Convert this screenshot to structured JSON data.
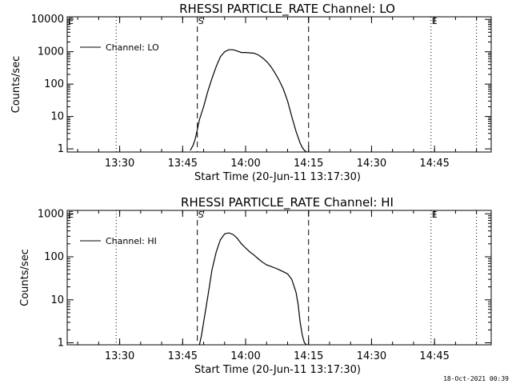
{
  "footer_timestamp": "18-Oct-2021 00:39",
  "chart_data": [
    {
      "type": "line",
      "title": "RHESSI PARTICLE_RATE Channel: LO",
      "xlabel": "Start Time (20-Jun-11 13:17:30)",
      "ylabel": "Counts/sec",
      "yscale": "log",
      "ylim": [
        0.8,
        12000
      ],
      "xlim": [
        "13:17:30",
        "14:58:30"
      ],
      "xticks": [
        "13:30",
        "13:45",
        "14:00",
        "14:15",
        "14:30",
        "14:45"
      ],
      "yticks": [
        1,
        10,
        100,
        1000,
        10000
      ],
      "ytick_labels": [
        "1",
        "10",
        "100",
        "1000",
        "10000"
      ],
      "legend": {
        "entries": [
          "Channel: LO"
        ],
        "placement": "top-left"
      },
      "markers": [
        {
          "time": "13:17:30",
          "style": "dotted",
          "label": "E"
        },
        {
          "time": "13:29:10",
          "style": "dotted",
          "label": ""
        },
        {
          "time": "13:48:30",
          "style": "dashed",
          "label": "S"
        },
        {
          "time": "14:15:00",
          "style": "dashed",
          "label": ""
        },
        {
          "time": "14:44:10",
          "style": "dotted",
          "label": "E"
        },
        {
          "time": "14:55:00",
          "style": "dotted",
          "label": ""
        }
      ],
      "series": [
        {
          "name": "Channel: LO",
          "x": [
            "13:46:50",
            "13:47:30",
            "13:48:00",
            "13:48:30",
            "13:49:00",
            "13:50:00",
            "13:51:00",
            "13:52:00",
            "13:53:00",
            "13:54:00",
            "13:55:00",
            "13:56:00",
            "13:57:00",
            "13:58:00",
            "13:59:00",
            "14:00:00",
            "14:01:00",
            "14:02:00",
            "14:03:00",
            "14:04:00",
            "14:05:00",
            "14:06:00",
            "14:07:00",
            "14:08:00",
            "14:09:00",
            "14:10:00",
            "14:11:00",
            "14:12:00",
            "14:13:00",
            "14:13:30",
            "14:14:00",
            "14:14:30"
          ],
          "y": [
            0.9,
            1.3,
            2,
            4,
            8,
            20,
            60,
            150,
            350,
            700,
            1000,
            1150,
            1150,
            1050,
            950,
            950,
            920,
            900,
            800,
            650,
            500,
            350,
            220,
            130,
            70,
            30,
            10,
            3.5,
            1.5,
            1.1,
            0.9,
            0.8
          ]
        }
      ]
    },
    {
      "type": "line",
      "title": "RHESSI PARTICLE_RATE Channel: HI",
      "xlabel": "Start Time (20-Jun-11 13:17:30)",
      "ylabel": "Counts/sec",
      "yscale": "log",
      "ylim": [
        0.9,
        1200
      ],
      "xlim": [
        "13:17:30",
        "14:58:30"
      ],
      "xticks": [
        "13:30",
        "13:45",
        "14:00",
        "14:15",
        "14:30",
        "14:45"
      ],
      "yticks": [
        1,
        10,
        100,
        1000
      ],
      "ytick_labels": [
        "1",
        "10",
        "100",
        "1000"
      ],
      "legend": {
        "entries": [
          "Channel: HI"
        ],
        "placement": "top-left"
      },
      "markers": [
        {
          "time": "13:17:30",
          "style": "dotted",
          "label": "E"
        },
        {
          "time": "13:29:10",
          "style": "dotted",
          "label": ""
        },
        {
          "time": "13:48:30",
          "style": "dashed",
          "label": "S"
        },
        {
          "time": "14:15:00",
          "style": "dashed",
          "label": ""
        },
        {
          "time": "14:44:10",
          "style": "dotted",
          "label": "E"
        },
        {
          "time": "14:55:00",
          "style": "dotted",
          "label": ""
        }
      ],
      "series": [
        {
          "name": "Channel: HI",
          "x": [
            "13:49:00",
            "13:49:30",
            "13:50:00",
            "13:51:00",
            "13:52:00",
            "13:53:00",
            "13:54:00",
            "13:55:00",
            "13:56:00",
            "13:57:00",
            "13:58:00",
            "13:59:00",
            "14:00:00",
            "14:01:00",
            "14:02:00",
            "14:03:00",
            "14:04:00",
            "14:05:00",
            "14:06:00",
            "14:07:00",
            "14:08:00",
            "14:09:00",
            "14:10:00",
            "14:11:00",
            "14:12:00",
            "14:12:30",
            "14:13:00",
            "14:13:30",
            "14:14:00",
            "14:14:30"
          ],
          "y": [
            0.9,
            1.5,
            3,
            12,
            50,
            130,
            250,
            340,
            360,
            330,
            270,
            200,
            160,
            130,
            110,
            90,
            75,
            65,
            60,
            55,
            50,
            45,
            40,
            30,
            15,
            8,
            3,
            1.5,
            1.0,
            0.9
          ]
        }
      ]
    }
  ]
}
